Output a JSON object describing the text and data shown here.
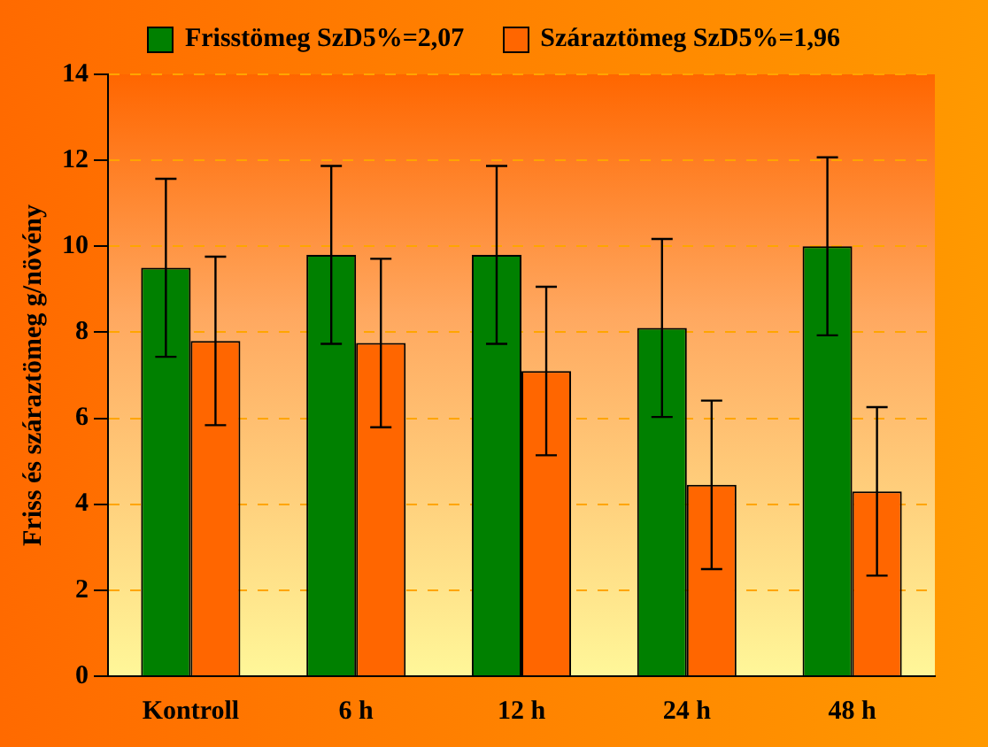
{
  "chart_data": {
    "type": "bar",
    "ylabel": "Friss és száraztömeg g/növény",
    "categories": [
      "Kontroll",
      "6 h",
      "12 h",
      "24 h",
      "48 h"
    ],
    "series": [
      {
        "name": "Frisstömeg SzD5%=2,07",
        "color": "#008000",
        "values": [
          9.5,
          9.8,
          9.8,
          8.1,
          10.0
        ],
        "errors": [
          2.07,
          2.07,
          2.07,
          2.07,
          2.07
        ]
      },
      {
        "name": "Száraztömeg SzD5%=1,96",
        "color": "#ff6600",
        "values": [
          7.8,
          7.75,
          7.1,
          4.45,
          4.3
        ],
        "errors": [
          1.96,
          1.96,
          1.96,
          1.96,
          1.96
        ]
      }
    ],
    "ylim": [
      0,
      14
    ],
    "yticks": [
      0,
      2,
      4,
      6,
      8,
      10,
      12,
      14
    ],
    "grid": "y",
    "legend": "top"
  }
}
